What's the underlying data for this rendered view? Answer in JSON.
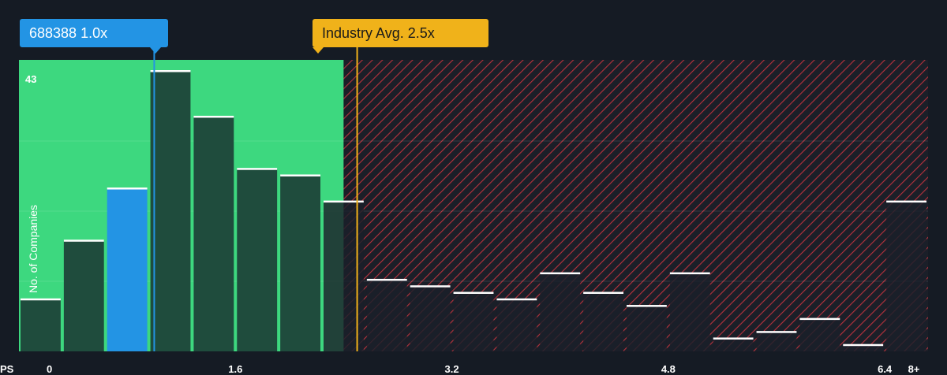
{
  "chart_data": {
    "type": "bar",
    "x_axis_label": "PS",
    "y_axis_label": "No. of Companies",
    "y_max_label": "43",
    "y_max": 43,
    "x_ticks": [
      "0",
      "1.6",
      "3.2",
      "4.8",
      "6.4",
      "8+"
    ],
    "x_tick_values": [
      0,
      1.6,
      3.2,
      4.8,
      6.4,
      8
    ],
    "bin_width": 0.32,
    "bins": [
      {
        "x_start": 0.0,
        "count": 8
      },
      {
        "x_start": 0.32,
        "count": 17
      },
      {
        "x_start": 0.64,
        "count": 25,
        "highlighted": true
      },
      {
        "x_start": 0.96,
        "count": 43
      },
      {
        "x_start": 1.28,
        "count": 36
      },
      {
        "x_start": 1.6,
        "count": 28
      },
      {
        "x_start": 1.92,
        "count": 27
      },
      {
        "x_start": 2.24,
        "count": 23
      },
      {
        "x_start": 2.56,
        "count": 11
      },
      {
        "x_start": 2.88,
        "count": 10
      },
      {
        "x_start": 3.2,
        "count": 9
      },
      {
        "x_start": 3.52,
        "count": 8
      },
      {
        "x_start": 3.84,
        "count": 12
      },
      {
        "x_start": 4.16,
        "count": 9
      },
      {
        "x_start": 4.48,
        "count": 7
      },
      {
        "x_start": 4.8,
        "count": 12
      },
      {
        "x_start": 5.12,
        "count": 2
      },
      {
        "x_start": 5.44,
        "count": 3
      },
      {
        "x_start": 5.76,
        "count": 5
      },
      {
        "x_start": 6.08,
        "count": 1
      },
      {
        "x_start": 6.4,
        "count": 23
      }
    ],
    "company": {
      "label": "688388 1.0x",
      "value": 1.0
    },
    "industry_avg": {
      "label": "Industry Avg. 2.5x",
      "value": 2.5
    },
    "fair_zone_upper": 2.4,
    "colors": {
      "background": "#151b24",
      "fair_zone": "#3dd87f",
      "bar_in_zone": "#1f4c3d",
      "bar_out_zone": "#1b2029",
      "highlight": "#2394e4",
      "industry": "#f0b21a",
      "hatch": "#b8323d",
      "bar_top": "#ffffff"
    }
  }
}
